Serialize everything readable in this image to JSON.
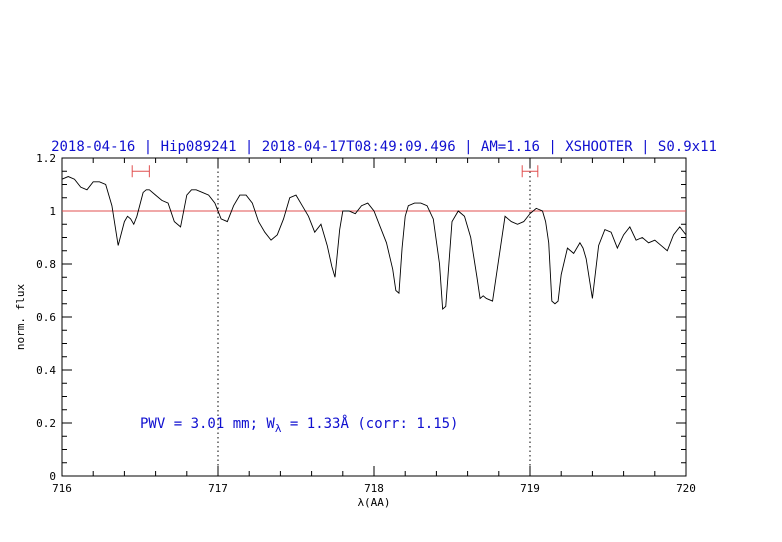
{
  "chart_data": {
    "type": "line",
    "title": "2018-04-16 | Hip089241 | 2018-04-17T08:49:09.496 | AM=1.16 | XSHOOTER | S0.9x11",
    "xlabel": "λ(AA)",
    "ylabel": "norm. flux",
    "xlim": [
      716,
      720
    ],
    "ylim": [
      0,
      1.2
    ],
    "xticks": [
      716,
      717,
      718,
      719,
      720
    ],
    "xtick_labels": [
      "716",
      "717",
      "718",
      "719",
      "720"
    ],
    "yticks": [
      0,
      0.2,
      0.4,
      0.6,
      0.8,
      1,
      1.2
    ],
    "ytick_labels": [
      "0",
      "0.2",
      "0.4",
      "0.6",
      "0.8",
      "1",
      "1.2"
    ],
    "reference_line_y": 1.0,
    "reference_line_color": "#e05050",
    "vertical_markers": [
      717,
      719
    ],
    "interval_markers": [
      [
        716.45,
        716.56
      ],
      [
        718.95,
        719.05
      ]
    ],
    "interval_marker_y": 1.15,
    "annotation": {
      "prefix": "PWV = 3.01 mm; W",
      "subscript": "λ",
      "suffix": " = 1.33Å (corr: 1.15)"
    },
    "series": [
      {
        "color": "#000000",
        "x": [
          716.0,
          716.04,
          716.08,
          716.12,
          716.16,
          716.2,
          716.24,
          716.28,
          716.32,
          716.36,
          716.4,
          716.42,
          716.44,
          716.46,
          716.48,
          716.52,
          716.54,
          716.56,
          716.6,
          716.64,
          716.68,
          716.72,
          716.76,
          716.8,
          716.83,
          716.86,
          716.9,
          716.94,
          716.98,
          717.02,
          717.06,
          717.1,
          717.14,
          717.18,
          717.22,
          717.26,
          717.3,
          717.34,
          717.38,
          717.42,
          717.46,
          717.5,
          717.54,
          717.58,
          717.62,
          717.66,
          717.7,
          717.73,
          717.75,
          717.78,
          717.8,
          717.84,
          717.88,
          717.92,
          717.96,
          718.0,
          718.04,
          718.08,
          718.12,
          718.14,
          718.16,
          718.18,
          718.2,
          718.22,
          718.26,
          718.3,
          718.34,
          718.38,
          718.42,
          718.44,
          718.46,
          718.48,
          718.5,
          718.54,
          718.58,
          718.62,
          718.66,
          718.68,
          718.7,
          718.72,
          718.76,
          718.8,
          718.84,
          718.88,
          718.92,
          718.96,
          719.0,
          719.04,
          719.08,
          719.1,
          719.12,
          719.14,
          719.16,
          719.18,
          719.2,
          719.24,
          719.28,
          719.32,
          719.34,
          719.36,
          719.4,
          719.44,
          719.48,
          719.52,
          719.56,
          719.6,
          719.64,
          719.68,
          719.72,
          719.76,
          719.8,
          719.84,
          719.88,
          719.92,
          719.96,
          720.0
        ],
        "y": [
          1.12,
          1.13,
          1.12,
          1.09,
          1.08,
          1.11,
          1.11,
          1.1,
          1.02,
          0.87,
          0.96,
          0.98,
          0.97,
          0.95,
          0.98,
          1.07,
          1.08,
          1.08,
          1.06,
          1.04,
          1.03,
          0.96,
          0.94,
          1.06,
          1.08,
          1.08,
          1.07,
          1.06,
          1.03,
          0.97,
          0.96,
          1.02,
          1.06,
          1.06,
          1.03,
          0.96,
          0.92,
          0.89,
          0.91,
          0.97,
          1.05,
          1.06,
          1.02,
          0.98,
          0.92,
          0.95,
          0.87,
          0.79,
          0.75,
          0.93,
          1.0,
          1.0,
          0.99,
          1.02,
          1.03,
          1.0,
          0.94,
          0.88,
          0.78,
          0.7,
          0.69,
          0.86,
          0.98,
          1.02,
          1.03,
          1.03,
          1.02,
          0.97,
          0.8,
          0.63,
          0.64,
          0.8,
          0.96,
          1.0,
          0.98,
          0.9,
          0.75,
          0.67,
          0.68,
          0.67,
          0.66,
          0.82,
          0.98,
          0.96,
          0.95,
          0.96,
          0.99,
          1.01,
          1.0,
          0.96,
          0.88,
          0.66,
          0.65,
          0.66,
          0.76,
          0.86,
          0.84,
          0.88,
          0.86,
          0.82,
          0.67,
          0.87,
          0.93,
          0.92,
          0.86,
          0.91,
          0.94,
          0.89,
          0.9,
          0.88,
          0.89,
          0.87,
          0.85,
          0.91,
          0.94,
          0.91
        ]
      }
    ]
  }
}
